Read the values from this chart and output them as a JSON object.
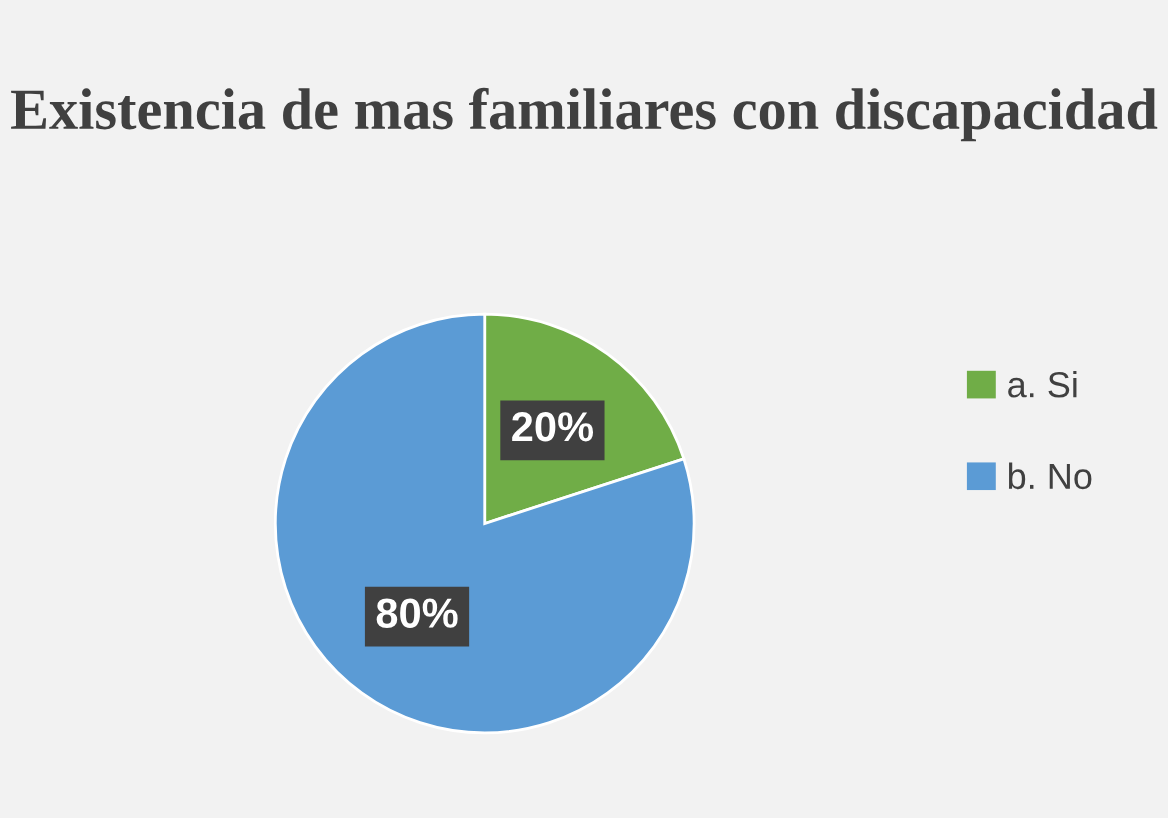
{
  "chart_data": {
    "type": "pie",
    "title": "Existencia de mas familiares con discapacidad",
    "categories": [
      "a. Si",
      "b. No"
    ],
    "values": [
      20,
      80
    ],
    "colors": [
      "#70ad47",
      "#5b9bd5"
    ],
    "value_labels": [
      "20%",
      "80%"
    ],
    "legend": "right"
  }
}
